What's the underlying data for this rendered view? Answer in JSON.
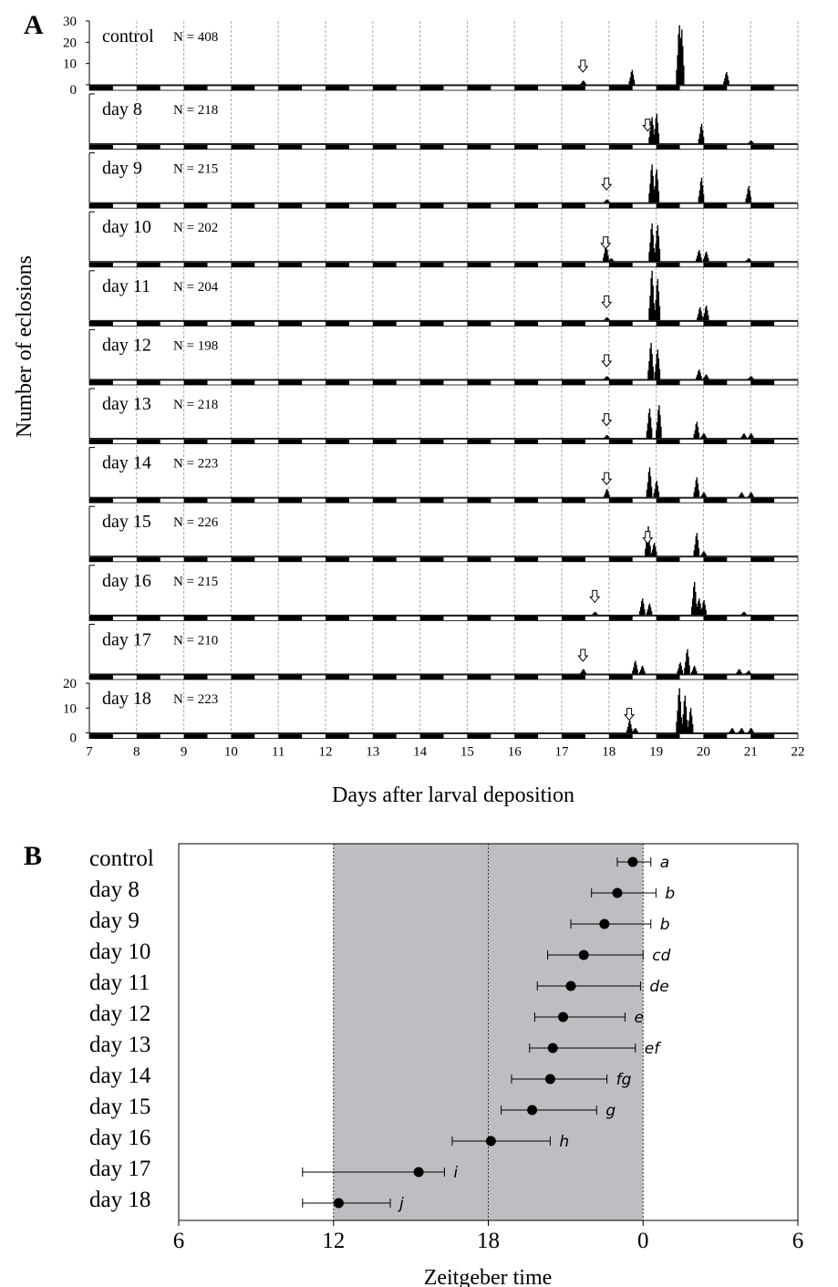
{
  "panel_a": {
    "letter": "A",
    "ylabel": "Number of eclosions",
    "xlabel": "Days after larval deposition",
    "x_ticks": [
      "7",
      "8",
      "9",
      "10",
      "11",
      "12",
      "13",
      "14",
      "15",
      "16",
      "17",
      "18",
      "19",
      "20",
      "21",
      "22"
    ],
    "y_ticks_top": [
      "30",
      "20",
      "10",
      "0"
    ],
    "y_ticks_bottom": [
      "20",
      "10",
      "0"
    ]
  },
  "panel_b": {
    "letter": "B",
    "xlabel": "Zeitgeber time",
    "x_ticks": [
      "6",
      "12",
      "18",
      "0",
      "6"
    ],
    "rows": [
      {
        "label": "control",
        "sig": "a"
      },
      {
        "label": "day  8",
        "sig": "b"
      },
      {
        "label": "day  9",
        "sig": "b"
      },
      {
        "label": "day 10",
        "sig": "cd"
      },
      {
        "label": "day 11",
        "sig": "de"
      },
      {
        "label": "day 12",
        "sig": "e"
      },
      {
        "label": "day 13",
        "sig": "ef"
      },
      {
        "label": "day 14",
        "sig": "fg"
      },
      {
        "label": "day 15",
        "sig": "g"
      },
      {
        "label": "day 16",
        "sig": "h"
      },
      {
        "label": "day 17",
        "sig": "i"
      },
      {
        "label": "day 18",
        "sig": "j"
      }
    ]
  },
  "chart_data": [
    {
      "type": "bar",
      "xlabel": "Days after larval deposition",
      "ylabel": "Number of eclosions",
      "xlim": [
        7,
        22
      ],
      "series": [
        {
          "name": "control",
          "n_label": "N = 408",
          "ylim": [
            0,
            30
          ],
          "arrow_day": 17.45,
          "peaks": [
            [
              17.45,
              2
            ],
            [
              18.48,
              7
            ],
            [
              19.48,
              28
            ],
            [
              19.53,
              26
            ],
            [
              20.48,
              6
            ]
          ]
        },
        {
          "name": "day 8",
          "n_label": "N = 218",
          "ylim": [
            0,
            30
          ],
          "arrow_day": 18.82,
          "peaks": [
            [
              18.9,
              16
            ],
            [
              19.0,
              18
            ],
            [
              19.95,
              12
            ],
            [
              21.0,
              2
            ]
          ]
        },
        {
          "name": "day 9",
          "n_label": "N = 215",
          "ylim": [
            0,
            30
          ],
          "arrow_day": 17.95,
          "peaks": [
            [
              17.95,
              2
            ],
            [
              18.9,
              23
            ],
            [
              19.0,
              20
            ],
            [
              19.95,
              15
            ],
            [
              20.95,
              10
            ]
          ]
        },
        {
          "name": "day 10",
          "n_label": "N = 202",
          "ylim": [
            0,
            30
          ],
          "arrow_day": 17.93,
          "peaks": [
            [
              17.93,
              10
            ],
            [
              18.04,
              2
            ],
            [
              18.9,
              23
            ],
            [
              19.02,
              22
            ],
            [
              19.9,
              7
            ],
            [
              20.05,
              6
            ],
            [
              20.95,
              2
            ]
          ]
        },
        {
          "name": "day 11",
          "n_label": "N = 204",
          "ylim": [
            0,
            30
          ],
          "arrow_day": 17.95,
          "peaks": [
            [
              17.95,
              2
            ],
            [
              18.9,
              30
            ],
            [
              19.02,
              25
            ],
            [
              19.92,
              8
            ],
            [
              20.05,
              9
            ]
          ]
        },
        {
          "name": "day 12",
          "n_label": "N = 198",
          "ylim": [
            0,
            30
          ],
          "arrow_day": 17.95,
          "peaks": [
            [
              17.95,
              2
            ],
            [
              18.88,
              22
            ],
            [
              19.02,
              18
            ],
            [
              19.9,
              6
            ],
            [
              20.05,
              3
            ],
            [
              21.0,
              2
            ]
          ]
        },
        {
          "name": "day 13",
          "n_label": "N = 218",
          "ylim": [
            0,
            30
          ],
          "arrow_day": 17.95,
          "peaks": [
            [
              17.95,
              2
            ],
            [
              18.85,
              18
            ],
            [
              19.05,
              20
            ],
            [
              19.85,
              10
            ],
            [
              20.0,
              3
            ],
            [
              20.85,
              3
            ],
            [
              21.0,
              3
            ]
          ]
        },
        {
          "name": "day 14",
          "n_label": "N = 223",
          "ylim": [
            0,
            30
          ],
          "arrow_day": 17.95,
          "peaks": [
            [
              17.95,
              5
            ],
            [
              18.85,
              18
            ],
            [
              19.0,
              10
            ],
            [
              19.85,
              12
            ],
            [
              20.0,
              3
            ],
            [
              20.8,
              3
            ],
            [
              21.0,
              3
            ]
          ]
        },
        {
          "name": "day 15",
          "n_label": "N = 226",
          "ylim": [
            0,
            30
          ],
          "arrow_day": 18.82,
          "peaks": [
            [
              18.82,
              18
            ],
            [
              18.95,
              8
            ],
            [
              19.85,
              14
            ],
            [
              20.0,
              3
            ]
          ]
        },
        {
          "name": "day 16",
          "n_label": "N = 215",
          "ylim": [
            0,
            30
          ],
          "arrow_day": 17.7,
          "peaks": [
            [
              17.7,
              2
            ],
            [
              18.7,
              10
            ],
            [
              18.85,
              7
            ],
            [
              19.8,
              20
            ],
            [
              19.9,
              10
            ],
            [
              20.0,
              9
            ],
            [
              20.85,
              2
            ]
          ]
        },
        {
          "name": "day 17",
          "n_label": "N = 210",
          "ylim": [
            0,
            30
          ],
          "arrow_day": 17.45,
          "peaks": [
            [
              17.45,
              3
            ],
            [
              18.55,
              8
            ],
            [
              18.7,
              5
            ],
            [
              19.5,
              7
            ],
            [
              19.65,
              15
            ],
            [
              19.8,
              5
            ],
            [
              20.75,
              3
            ],
            [
              20.95,
              2
            ]
          ]
        },
        {
          "name": "day 18",
          "n_label": "N = 223",
          "ylim": [
            0,
            20
          ],
          "arrow_day": 18.43,
          "peaks": [
            [
              18.43,
              5
            ],
            [
              18.55,
              2
            ],
            [
              19.48,
              18
            ],
            [
              19.6,
              15
            ],
            [
              19.72,
              10
            ],
            [
              20.6,
              2
            ],
            [
              20.8,
              2
            ],
            [
              21.0,
              2
            ]
          ]
        }
      ]
    },
    {
      "type": "scatter",
      "xlabel": "Zeitgeber time",
      "x_ticks": [
        "6",
        "12",
        "18",
        "0",
        "6"
      ],
      "dark_phase": [
        12,
        24
      ],
      "points": [
        {
          "label": "control",
          "mean_zt": 23.6,
          "lo": 23.0,
          "hi": 24.3,
          "sig": "a"
        },
        {
          "label": "day  8",
          "mean_zt": 23.0,
          "lo": 22.0,
          "hi": 24.5,
          "sig": "b"
        },
        {
          "label": "day  9",
          "mean_zt": 22.5,
          "lo": 21.2,
          "hi": 24.3,
          "sig": "b"
        },
        {
          "label": "day 10",
          "mean_zt": 21.7,
          "lo": 20.3,
          "hi": 24.0,
          "sig": "cd"
        },
        {
          "label": "day 11",
          "mean_zt": 21.2,
          "lo": 19.9,
          "hi": 23.9,
          "sig": "de"
        },
        {
          "label": "day 12",
          "mean_zt": 20.9,
          "lo": 19.8,
          "hi": 23.3,
          "sig": "e"
        },
        {
          "label": "day 13",
          "mean_zt": 20.5,
          "lo": 19.6,
          "hi": 23.7,
          "sig": "ef"
        },
        {
          "label": "day 14",
          "mean_zt": 20.4,
          "lo": 18.9,
          "hi": 22.6,
          "sig": "fg"
        },
        {
          "label": "day 15",
          "mean_zt": 19.7,
          "lo": 18.5,
          "hi": 22.2,
          "sig": "g"
        },
        {
          "label": "day 16",
          "mean_zt": 18.1,
          "lo": 16.6,
          "hi": 20.4,
          "sig": "h"
        },
        {
          "label": "day 17",
          "mean_zt": 15.3,
          "lo": 10.8,
          "hi": 16.3,
          "sig": "i"
        },
        {
          "label": "day 18",
          "mean_zt": 12.2,
          "lo": 10.8,
          "hi": 14.2,
          "sig": "j"
        }
      ]
    }
  ]
}
